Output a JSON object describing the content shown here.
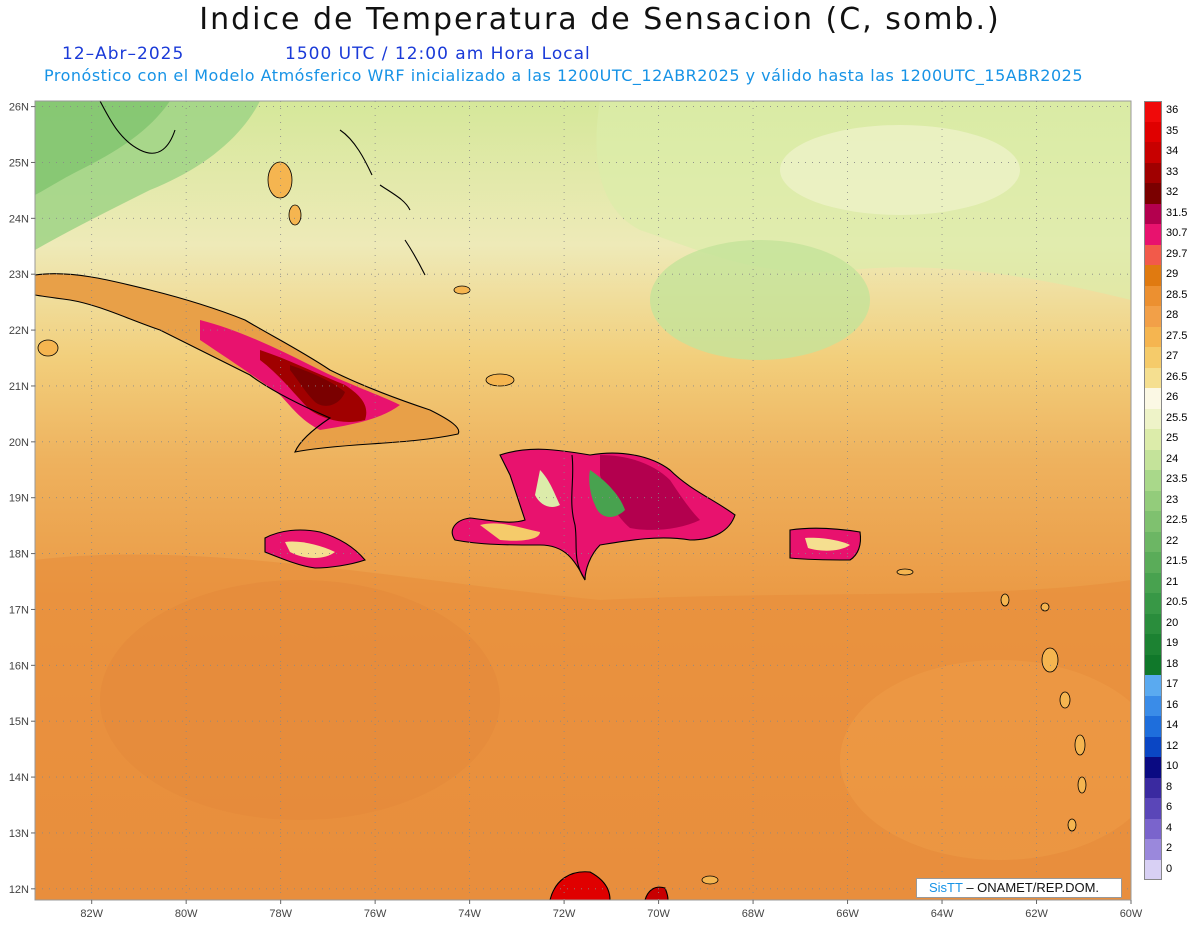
{
  "header": {
    "title": "Indice de Temperatura de Sensacion (C, somb.)",
    "date": "12–Abr–2025",
    "time": "1500 UTC / 12:00 am Hora Local",
    "forecast": "Pronóstico con el Modelo Atmósferico WRF inicializado a las 1200UTC_12ABR2025 y válido hasta las  1200UTC_15ABR2025"
  },
  "map": {
    "lon_labels": [
      "82W",
      "80W",
      "78W",
      "76W",
      "74W",
      "72W",
      "70W",
      "68W",
      "66W",
      "64W",
      "62W",
      "60W"
    ],
    "lat_labels": [
      "26N",
      "25N",
      "24N",
      "23N",
      "22N",
      "21N",
      "20N",
      "19N",
      "18N",
      "17N",
      "16N",
      "15N",
      "14N",
      "13N",
      "12N"
    ],
    "lon_range": [
      -83.2,
      -60
    ],
    "lat_range": [
      11.8,
      26.1
    ],
    "grid": "dotted"
  },
  "colors": {
    "ocean_south": "#eb9a45",
    "ocean_north": "#d5e89a",
    "coastline": "#000000",
    "grid": "#888888"
  },
  "legend": {
    "levels": [
      "36",
      "35",
      "34",
      "33",
      "32",
      "31.5",
      "30.7",
      "29.7",
      "29",
      "28.5",
      "28",
      "27.5",
      "27",
      "26.5",
      "26",
      "25.5",
      "25",
      "24",
      "23.5",
      "23",
      "22.5",
      "22",
      "21.5",
      "21",
      "20.5",
      "20",
      "19",
      "18",
      "17",
      "16",
      "14",
      "12",
      "10",
      "8",
      "6",
      "4",
      "2",
      "0"
    ],
    "colors": [
      "#f00a0a",
      "#e00000",
      "#c80000",
      "#a00000",
      "#7a0000",
      "#b3004e",
      "#e8126e",
      "#f25a4a",
      "#e07a10",
      "#ec9030",
      "#f2a048",
      "#f5b550",
      "#f5cb6a",
      "#f5df90",
      "#fbf8e4",
      "#eef3c8",
      "#dcecaa",
      "#c4e39a",
      "#a9d88a",
      "#93cc7b",
      "#7fc16f",
      "#6cb664",
      "#5aac59",
      "#48a24f",
      "#389846",
      "#2a8d3c",
      "#1c8232",
      "#10782a",
      "#5aaaf0",
      "#3a8ce8",
      "#1e6edc",
      "#0a46c4",
      "#0a0a82",
      "#3a2aa0",
      "#5a46b8",
      "#7a64cc",
      "#9a88dc",
      "#d8d0f4"
    ]
  },
  "credit": {
    "brand": "SisTT",
    "org": "– ONAMET/REP.DOM."
  }
}
